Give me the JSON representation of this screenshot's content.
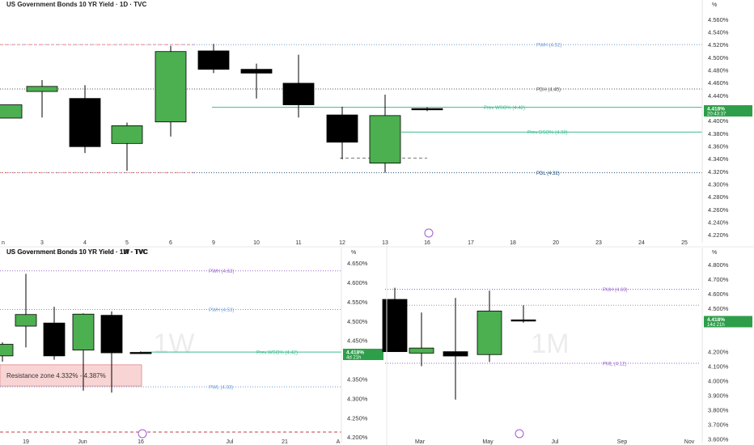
{
  "chart_data": [
    {
      "id": "daily",
      "type": "candlestick",
      "title": "US Government Bonds 10 YR Yield · 1D · TVC",
      "unit_label": "%",
      "ylim": [
        4.21,
        4.575
      ],
      "y_ticks": [
        "4.560%",
        "4.540%",
        "4.520%",
        "4.500%",
        "4.480%",
        "4.460%",
        "4.440%",
        "4.420%",
        "4.400%",
        "4.380%",
        "4.360%",
        "4.340%",
        "4.320%",
        "4.300%",
        "4.280%",
        "4.260%",
        "4.240%",
        "4.220%"
      ],
      "x_labels": [
        "n",
        "3",
        "4",
        "5",
        "6",
        "9",
        "10",
        "11",
        "12",
        "13",
        "16",
        "17",
        "18",
        "20",
        "23",
        "24",
        "25"
      ],
      "candles": [
        {
          "o": 4.404,
          "h": 4.425,
          "l": 4.404,
          "c": 4.425
        },
        {
          "o": 4.446,
          "h": 4.464,
          "l": 4.405,
          "c": 4.454
        },
        {
          "o": 4.435,
          "h": 4.456,
          "l": 4.349,
          "c": 4.359
        },
        {
          "o": 4.364,
          "h": 4.397,
          "l": 4.321,
          "c": 4.392
        },
        {
          "o": 4.398,
          "h": 4.518,
          "l": 4.375,
          "c": 4.509
        },
        {
          "o": 4.51,
          "h": 4.521,
          "l": 4.475,
          "c": 4.481
        },
        {
          "o": 4.481,
          "h": 4.49,
          "l": 4.435,
          "c": 4.475
        },
        {
          "o": 4.459,
          "h": 4.504,
          "l": 4.405,
          "c": 4.425
        },
        {
          "o": 4.409,
          "h": 4.422,
          "l": 4.339,
          "c": 4.366
        },
        {
          "o": 4.333,
          "h": 4.441,
          "l": 4.318,
          "c": 4.408
        },
        {
          "o": 4.419,
          "h": 4.421,
          "l": 4.415,
          "c": 4.418
        }
      ],
      "levels": [
        {
          "label": "PWH (4.52)",
          "value": 4.52,
          "color": "#6a9bd8",
          "style": "dotted"
        },
        {
          "label": "PDH (4.45)",
          "value": 4.45,
          "color": "#555555",
          "style": "dotted"
        },
        {
          "label": "Prev WSO% (4.42)",
          "value": 4.421,
          "color": "#3dbd8d",
          "style": "solid"
        },
        {
          "label": "Prev DSO% (4.38)",
          "value": 4.382,
          "color": "#3dbd8d",
          "style": "solid"
        },
        {
          "label": "PDL (4.32)",
          "value": 4.318,
          "color": "#1f4e79",
          "style": "dotted"
        }
      ],
      "last_price": {
        "value": 4.418,
        "label": "4.418%",
        "countdown": "20:43:37"
      }
    },
    {
      "id": "weekly",
      "type": "candlestick",
      "title": "US Government Bonds 10 YR Yield · 1W · TVC",
      "unit_label": "%",
      "watermark": "1W",
      "ylim": [
        4.19,
        4.665
      ],
      "y_ticks": [
        "4.650%",
        "4.600%",
        "4.550%",
        "4.500%",
        "4.450%",
        "4.350%",
        "4.300%",
        "4.250%",
        "4.200%"
      ],
      "x_labels": [
        "19",
        "Jun",
        "16",
        "Jul",
        "21",
        "A"
      ],
      "candles": [
        {
          "o": 4.41,
          "h": 4.445,
          "l": 4.395,
          "c": 4.44
        },
        {
          "o": 4.487,
          "h": 4.622,
          "l": 4.432,
          "c": 4.517
        },
        {
          "o": 4.495,
          "h": 4.537,
          "l": 4.4,
          "c": 4.41
        },
        {
          "o": 4.425,
          "h": 4.52,
          "l": 4.32,
          "c": 4.518
        },
        {
          "o": 4.515,
          "h": 4.525,
          "l": 4.315,
          "c": 4.418
        },
        {
          "o": 4.419,
          "h": 4.422,
          "l": 4.415,
          "c": 4.418
        }
      ],
      "levels": [
        {
          "label": "PWH (4.63)",
          "value": 4.63,
          "color": "#9966cc",
          "style": "dotted"
        },
        {
          "label": "PWH (4.53)",
          "value": 4.53,
          "color": "#6a9bd8",
          "style": "dotted"
        },
        {
          "label": "Prev WSO% (4.42)",
          "value": 4.42,
          "color": "#3dbd8d",
          "style": "solid"
        },
        {
          "label": "PWL (4.33)",
          "value": 4.33,
          "color": "#6a9bd8",
          "style": "dotted"
        }
      ],
      "zone": {
        "label": "Resistance zone  4.332% - 4.387%",
        "low": 4.332,
        "high": 4.387
      },
      "last_price": {
        "value": 4.418,
        "label": "4.418%",
        "countdown": "4d 21h"
      }
    },
    {
      "id": "monthly",
      "type": "candlestick",
      "title": "US Government Bonds 10 YR Yield · 1M · TVC",
      "unit_label": "%",
      "watermark": "1M",
      "ylim": [
        3.585,
        4.85
      ],
      "y_ticks": [
        "4.800%",
        "4.700%",
        "4.600%",
        "4.500%",
        "4.400%",
        "4.200%",
        "4.100%",
        "4.000%",
        "3.900%",
        "3.800%",
        "3.700%",
        "3.600%"
      ],
      "x_labels": [
        "Mar",
        "May",
        "Jul",
        "Sep",
        "Nov"
      ],
      "candles": [
        {
          "o": 4.56,
          "h": 4.64,
          "l": 4.2,
          "c": 4.2
        },
        {
          "o": 4.19,
          "h": 4.47,
          "l": 4.1,
          "c": 4.225
        },
        {
          "o": 4.2,
          "h": 4.57,
          "l": 3.87,
          "c": 4.17
        },
        {
          "o": 4.18,
          "h": 4.62,
          "l": 4.13,
          "c": 4.48
        },
        {
          "o": 4.419,
          "h": 4.52,
          "l": 4.4,
          "c": 4.418
        }
      ],
      "levels": [
        {
          "label": "PMH (4.63)",
          "value": 4.63,
          "color": "#9966cc",
          "style": "dotted"
        },
        {
          "label": "PML (4.12)",
          "value": 4.12,
          "color": "#9966cc",
          "style": "dotted"
        }
      ],
      "last_price": {
        "value": 4.418,
        "label": "4.418%",
        "countdown": "14d 21h"
      }
    }
  ],
  "colors": {
    "up": "#4caf50",
    "down": "#000000",
    "grid_dot": "#b0b0b0",
    "price_tag": "#2e9e4a"
  }
}
